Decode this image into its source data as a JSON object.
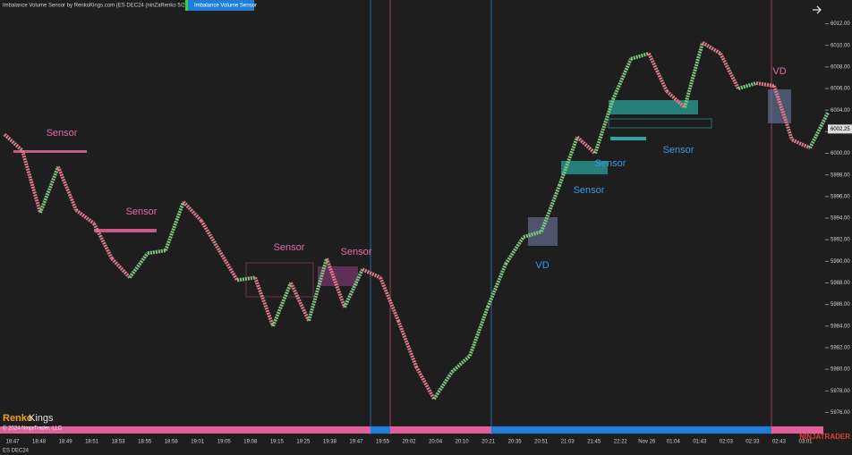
{
  "chart_data": {
    "type": "renko",
    "title": "Imbalance Volume Sensor by RenkoKings.com (ES DEC24 (ninZaRenko 5/2))",
    "indicator_button": "Imbalance Volume Sensor",
    "instrument": "ES DEC24",
    "copyright": "© 2024 NinjaTrader, LLC",
    "logo_left": "Renko",
    "logo_right": "Kings",
    "brand": "NINJATRADER",
    "up_color": "#7fc47f",
    "down_color": "#e07a8a",
    "ylim": [
      5973.8,
      6014.2
    ],
    "yticks": [
      {
        "value": 5976,
        "label": "5976.00"
      },
      {
        "value": 5978,
        "label": "5978.00"
      },
      {
        "value": 5980,
        "label": "5980.00"
      },
      {
        "value": 5982,
        "label": "5982.00"
      },
      {
        "value": 5984,
        "label": "5984.00"
      },
      {
        "value": 5986,
        "label": "5986.00"
      },
      {
        "value": 5988,
        "label": "5988.00"
      },
      {
        "value": 5990,
        "label": "5990.00"
      },
      {
        "value": 5992,
        "label": "5992.00"
      },
      {
        "value": 5994,
        "label": "5994.00"
      },
      {
        "value": 5996,
        "label": "5996.00"
      },
      {
        "value": 5998,
        "label": "5998.00"
      },
      {
        "value": 6000,
        "label": "6000.00"
      },
      {
        "value": 6002,
        "label": "6002.00"
      },
      {
        "value": 6004,
        "label": "6004.00"
      },
      {
        "value": 6006,
        "label": "6006.00"
      },
      {
        "value": 6008,
        "label": "6008.00"
      },
      {
        "value": 6010,
        "label": "6010.00"
      },
      {
        "value": 6012,
        "label": "6012.00"
      }
    ],
    "last_price": 6002.25,
    "time_labels": [
      "18:47",
      "18:48",
      "18:49",
      "18:51",
      "18:53",
      "18:55",
      "18:58",
      "19:01",
      "19:05",
      "19:08",
      "19:15",
      "19:25",
      "19:38",
      "19:47",
      "19:55",
      "20:02",
      "20:04",
      "20:10",
      "20:21",
      "20:35",
      "20:51",
      "21:03",
      "21:45",
      "22:22",
      "Nov 26",
      "01:04",
      "01:43",
      "02:03",
      "02:33",
      "02:43",
      "03:01"
    ],
    "values": [
      6001.75,
      6000.25,
      5994.5,
      5998.75,
      5994.75,
      5993.5,
      5990.25,
      5988.5,
      5990.75,
      5991,
      5995.5,
      5993.75,
      5991,
      5988.25,
      5988.5,
      5984,
      5988,
      5984.5,
      5990.25,
      5985.75,
      5989.25,
      5988.5,
      5984.5,
      5980.25,
      5977.25,
      5979.75,
      5981.25,
      5985.75,
      5989.75,
      5992.25,
      5992.75,
      5997,
      6001.5,
      6000,
      6005,
      6008.75,
      6009.25,
      6005.75,
      6004.25,
      6010.25,
      6009.25,
      6006,
      6006.5,
      6006.25,
      6001.25,
      6000.5,
      6003.75
    ],
    "annotations": [
      "Sensor",
      "Sensor",
      "Sensor",
      "Sensor",
      "Sensor",
      "Sensor",
      "Sensor",
      "VD",
      "VD"
    ]
  }
}
